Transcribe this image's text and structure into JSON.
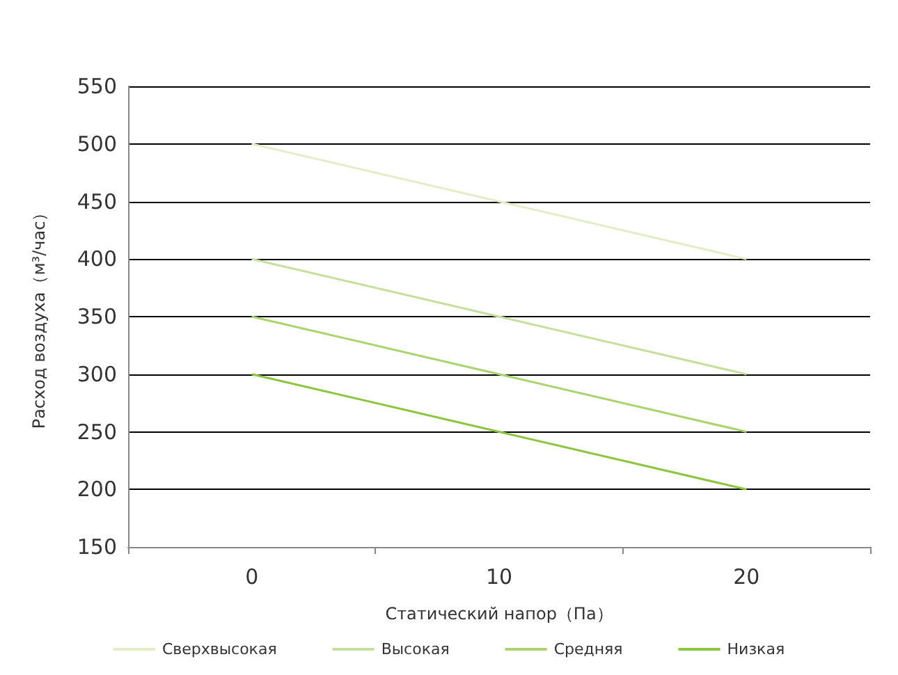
{
  "chart_data": {
    "type": "line",
    "xlabel": "Статический напор（Па）",
    "ylabel": "Расход воздуха（м³/час）",
    "categories": [
      "0",
      "10",
      "20"
    ],
    "series": [
      {
        "name": "Сверхвысокая",
        "color": "#e3edc8",
        "values": [
          500,
          450,
          400
        ]
      },
      {
        "name": "Высокая",
        "color": "#c5e09c",
        "values": [
          400,
          350,
          300
        ]
      },
      {
        "name": "Средняя",
        "color": "#a9d46e",
        "values": [
          350,
          300,
          250
        ]
      },
      {
        "name": "Низкая",
        "color": "#8cc63f",
        "values": [
          300,
          250,
          200
        ]
      }
    ],
    "ylim": [
      150,
      550
    ],
    "yticks": [
      150,
      200,
      250,
      300,
      350,
      400,
      450,
      500,
      550
    ],
    "grid": "y",
    "legend": "bottom",
    "marker": "none",
    "line_style": "solid"
  }
}
